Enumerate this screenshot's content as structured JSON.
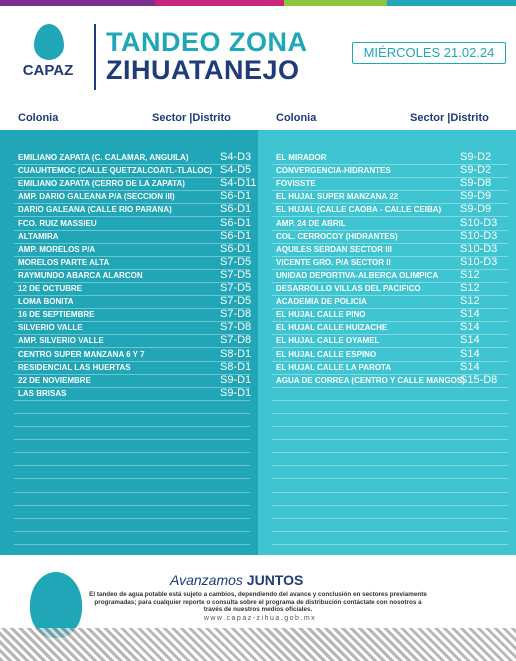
{
  "header": {
    "logo": "CAPAZ",
    "title_line1": "TANDEO ZONA",
    "title_line2": "ZIHUATANEJO",
    "date": "MIÉRCOLES 21.02.24"
  },
  "table": {
    "headers": [
      "Colonia",
      "Sector |Distrito",
      "Colonia",
      "Sector |Distrito"
    ],
    "left": [
      [
        "EMILIANO ZAPATA (C. CALAMAR, ANGUILA)",
        "S4-D3"
      ],
      [
        "CUAUHTEMOC (CALLE QUETZALCOATL-TLALOC)",
        "S4-D5"
      ],
      [
        "EMILIANO ZAPATA (CERRO DE LA ZAPATA)",
        "S4-D11"
      ],
      [
        "AMP. DARIO GALEANA P/A (SECCION III)",
        "S6-D1"
      ],
      [
        "DARIO GALEANA (CALLE RIO PARANA)",
        "S6-D1"
      ],
      [
        "FCO. RUIZ MASSIEU",
        "S6-D1"
      ],
      [
        "ALTAMIRA",
        "S6-D1"
      ],
      [
        "AMP. MORELOS P/A",
        "S6-D1"
      ],
      [
        "MORELOS PARTE ALTA",
        "S7-D5"
      ],
      [
        "RAYMUNDO ABARCA ALARCON",
        "S7-D5"
      ],
      [
        "12 DE OCTUBRE",
        "S7-D5"
      ],
      [
        "LOMA BONITA",
        "S7-D5"
      ],
      [
        "16 DE SEPTIEMBRE",
        "S7-D8"
      ],
      [
        "SILVERIO VALLE",
        "S7-D8"
      ],
      [
        "AMP. SILVERIO VALLE",
        "S7-D8"
      ],
      [
        "CENTRO SUPER MANZANA 6 Y 7",
        "S8-D1"
      ],
      [
        "RESIDENCIAL LAS HUERTAS",
        "S8-D1"
      ],
      [
        "22 DE NOVIEMBRE",
        "S9-D1"
      ],
      [
        "LAS BRISAS",
        "S9-D1"
      ]
    ],
    "right": [
      [
        "EL MIRADOR",
        "S9-D2"
      ],
      [
        "CONVERGENCIA-HIDRANTES",
        "S9-D2"
      ],
      [
        "FOVISSTE",
        "S9-D8"
      ],
      [
        "EL HUJAL SUPER MANZANA 22",
        "S9-D9"
      ],
      [
        "EL HUJAL (CALLE CAOBA - CALLE CEIBA)",
        "S9-D9"
      ],
      [
        "AMP. 24 DE ABRIL",
        "S10-D3"
      ],
      [
        "COL. CERROCOY (HIDRANTES)",
        "S10-D3"
      ],
      [
        "AQUILES SERDAN SECTOR III",
        "S10-D3"
      ],
      [
        "VICENTE GRO. P/A SECTOR II",
        "S10-D3"
      ],
      [
        "UNIDAD DEPORTIVA-ALBERCA OLIMPICA",
        "S12"
      ],
      [
        "DESARROLLO VILLAS DEL PACIFICO",
        "S12"
      ],
      [
        "ACADEMIA DE POLICIA",
        "S12"
      ],
      [
        "EL HUJAL CALLE PINO",
        "S14"
      ],
      [
        "EL HUJAL CALLE HUIZACHE",
        "S14"
      ],
      [
        "EL HUJAL CALLE OYAMEL",
        "S14"
      ],
      [
        "EL HUJAL CALLE ESPINO",
        "S14"
      ],
      [
        "EL HUJAL CALLE LA PAROTA",
        "S14"
      ],
      [
        "AGUA DE CORREA (CENTRO Y CALLE MANGOS)",
        "S15-D8"
      ]
    ]
  },
  "footer": {
    "slogan_1": "Avanzamos",
    "slogan_2": "JUNTOS",
    "note": "El tandeo de agua potable está sujeto a cambios, dependiendo del avance y conclusión en sectores previamente programadas; para cualquier reporte o consulta sobre el programa de distribución contáctate con nosotros a través de nuestros medios oficiales.",
    "url": "www.capaz-zihua.gob.mx"
  }
}
